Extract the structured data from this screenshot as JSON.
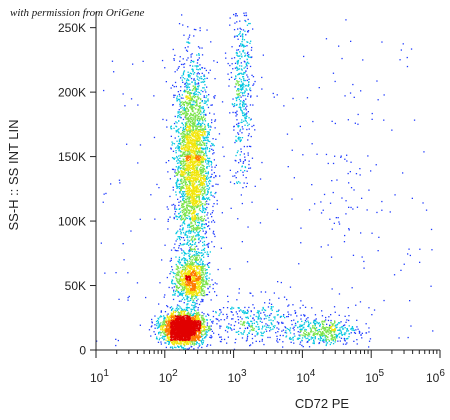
{
  "credit": "with permission from OriGene",
  "chart_data": {
    "type": "scatter",
    "subtype": "flow cytometry dot plot (density colored)",
    "title": "",
    "xlabel": "CD72 PE",
    "ylabel": "SS-H :: SS INT LIN",
    "x_scale": "log",
    "xlim": [
      10,
      1000000
    ],
    "ylim": [
      0,
      262144
    ],
    "grid": false,
    "x_ticks": [
      {
        "base": "10",
        "exp": "1",
        "value": 10
      },
      {
        "base": "10",
        "exp": "2",
        "value": 100
      },
      {
        "base": "10",
        "exp": "3",
        "value": 1000
      },
      {
        "base": "10",
        "exp": "4",
        "value": 10000
      },
      {
        "base": "10",
        "exp": "5",
        "value": 100000
      },
      {
        "base": "10",
        "exp": "6",
        "value": 1000000
      }
    ],
    "y_ticks": [
      {
        "label": "0",
        "value": 0
      },
      {
        "label": "50K",
        "value": 50000
      },
      {
        "label": "100K",
        "value": 100000
      },
      {
        "label": "150K",
        "value": 150000
      },
      {
        "label": "200K",
        "value": 200000
      },
      {
        "label": "250K",
        "value": 250000
      }
    ],
    "density_colors": [
      "#1f3bff",
      "#00c6e0",
      "#7be34a",
      "#f2e60c",
      "#ff7a00",
      "#e10000"
    ],
    "populations": [
      {
        "name": "",
        "x_center": 180,
        "x_spread_decades": 0.15,
        "y_center": 17000,
        "y_spread": 6000,
        "weight": 2600
      },
      {
        "name": "",
        "x_center": 240,
        "x_spread_decades": 0.12,
        "y_center": 55000,
        "y_spread": 9000,
        "weight": 900
      },
      {
        "name": "",
        "x_center": 250,
        "x_spread_decades": 0.13,
        "y_center": 145000,
        "y_spread": 38000,
        "weight": 2800
      },
      {
        "name": "",
        "x_center": 1300,
        "x_spread_decades": 0.08,
        "y_center": 200000,
        "y_spread": 35000,
        "weight": 450
      },
      {
        "name": "",
        "x_center": 20000,
        "x_spread_decades": 0.25,
        "y_center": 15000,
        "y_spread": 5000,
        "weight": 450
      },
      {
        "name": "",
        "x_center": 2000,
        "x_spread_decades": 0.35,
        "y_center": 22000,
        "y_spread": 10000,
        "weight": 350
      },
      {
        "name": "",
        "x_center": 40000,
        "x_spread_decades": 0.2,
        "y_center": 130000,
        "y_spread": 60000,
        "weight": 60
      }
    ]
  }
}
